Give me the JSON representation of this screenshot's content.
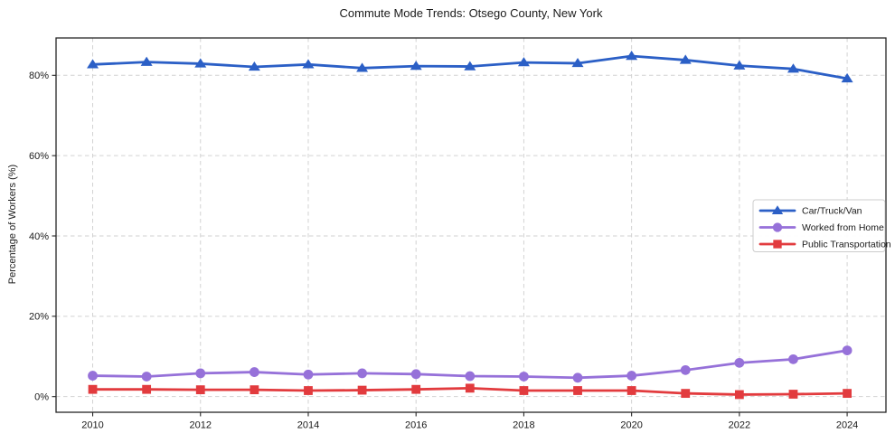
{
  "title": "Commute Mode Trends: Otsego County, New York",
  "chart_data": {
    "type": "line",
    "title": "Commute Mode Trends: Otsego County, New York",
    "xlabel": "",
    "ylabel": "Percentage of Workers (%)",
    "x": [
      2010,
      2011,
      2012,
      2013,
      2014,
      2015,
      2016,
      2017,
      2018,
      2019,
      2020,
      2021,
      2022,
      2023,
      2024
    ],
    "series": [
      {
        "name": "Car/Truck/Van",
        "color": "#2b5fc6",
        "marker": "triangle",
        "values": [
          82.7,
          83.3,
          82.9,
          82.1,
          82.7,
          81.8,
          82.3,
          82.2,
          83.2,
          83.0,
          84.8,
          83.8,
          82.4,
          81.6,
          79.2
        ]
      },
      {
        "name": "Worked from Home",
        "color": "#9671d9",
        "marker": "circle",
        "values": [
          5.2,
          5.0,
          5.8,
          6.1,
          5.5,
          5.8,
          5.6,
          5.1,
          5.0,
          4.7,
          5.2,
          6.6,
          8.4,
          9.3,
          11.5
        ]
      },
      {
        "name": "Public Transportation",
        "color": "#e23b3e",
        "marker": "square",
        "values": [
          1.8,
          1.8,
          1.7,
          1.7,
          1.5,
          1.6,
          1.8,
          2.1,
          1.5,
          1.5,
          1.5,
          0.8,
          0.5,
          0.6,
          0.8
        ]
      }
    ],
    "xticks": [
      2010,
      2012,
      2014,
      2016,
      2018,
      2020,
      2022,
      2024
    ],
    "xtick_labels": [
      "2010",
      "2012",
      "2014",
      "2016",
      "2018",
      "2020",
      "2022",
      "2024"
    ],
    "yticks": [
      0,
      20,
      40,
      60,
      80
    ],
    "ytick_labels": [
      "0%",
      "20%",
      "40%",
      "60%",
      "80%"
    ],
    "xlim": [
      2009.32,
      2024.72
    ],
    "ylim": [
      -3.9,
      89.3
    ],
    "grid": true,
    "grid_color": "#d2d2d2",
    "frame_color": "#262626",
    "legend_position": "center right"
  }
}
